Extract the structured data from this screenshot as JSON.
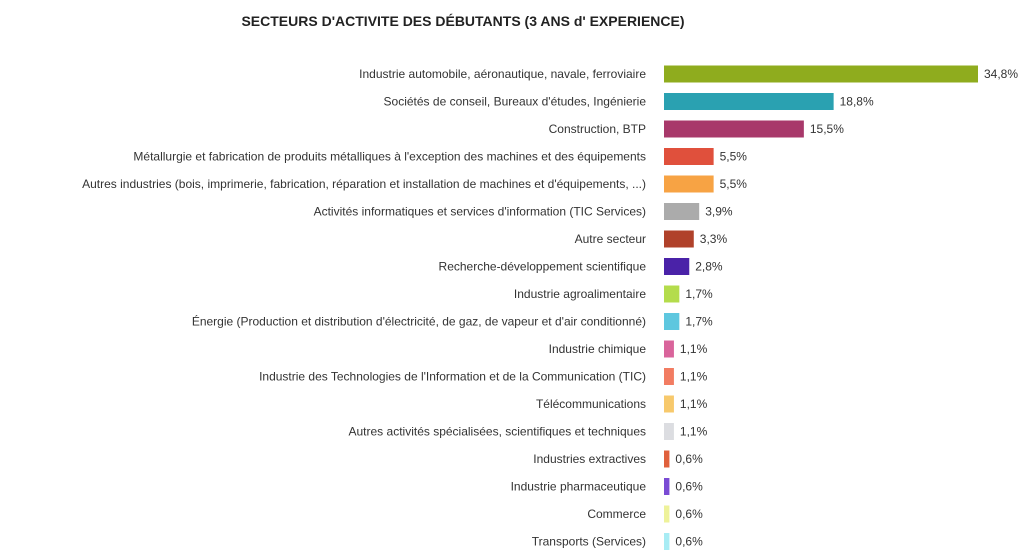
{
  "chart_data": {
    "type": "bar",
    "orientation": "horizontal",
    "title": "SECTEURS D'ACTIVITE DES DÉBUTANTS (3 ANS d' EXPERIENCE)",
    "xlabel": "",
    "ylabel": "",
    "grid": false,
    "legend": "none",
    "categories": [
      "Industrie automobile, aéronautique, navale, ferroviaire",
      "Sociétés de conseil, Bureaux d'études, Ingénierie",
      "Construction, BTP",
      "Métallurgie et fabrication de produits métalliques à l'exception des machines et des équipements",
      "Autres industries (bois, imprimerie, fabrication, réparation et installation de machines et d'équipements, ...)",
      "Activités informatiques et services d'information (TIC Services)",
      "Autre secteur",
      "Recherche-développement scientifique",
      "Industrie agroalimentaire",
      "Énergie (Production et distribution d'électricité, de gaz, de vapeur et d'air conditionné)",
      "Industrie chimique",
      "Industrie des Technologies de l'Information et de la Communication (TIC)",
      "Télécommunications",
      "Autres activités spécialisées, scientifiques et techniques",
      "Industries extractives",
      "Industrie pharmaceutique",
      "Commerce",
      "Transports (Services)"
    ],
    "values": [
      34.8,
      18.8,
      15.5,
      5.5,
      5.5,
      3.9,
      3.3,
      2.8,
      1.7,
      1.7,
      1.1,
      1.1,
      1.1,
      1.1,
      0.6,
      0.6,
      0.6,
      0.6
    ],
    "value_labels": [
      "34,8%",
      "18,8%",
      "15,5%",
      "5,5%",
      "5,5%",
      "3,9%",
      "3,3%",
      "2,8%",
      "1,7%",
      "1,7%",
      "1,1%",
      "1,1%",
      "1,1%",
      "1,1%",
      "0,6%",
      "0,6%",
      "0,6%",
      "0,6%"
    ],
    "colors": [
      "#8fac1e",
      "#2aa1b1",
      "#a8386a",
      "#e0503c",
      "#f7a344",
      "#ababab",
      "#b0412a",
      "#4a22a8",
      "#b4dc4c",
      "#5ec7df",
      "#d9649b",
      "#f27c62",
      "#f7c96c",
      "#dcdde1",
      "#e0603c",
      "#7a4bd4",
      "#eef29a",
      "#a8ecf4"
    ],
    "xlim": [
      0,
      34.8
    ]
  }
}
